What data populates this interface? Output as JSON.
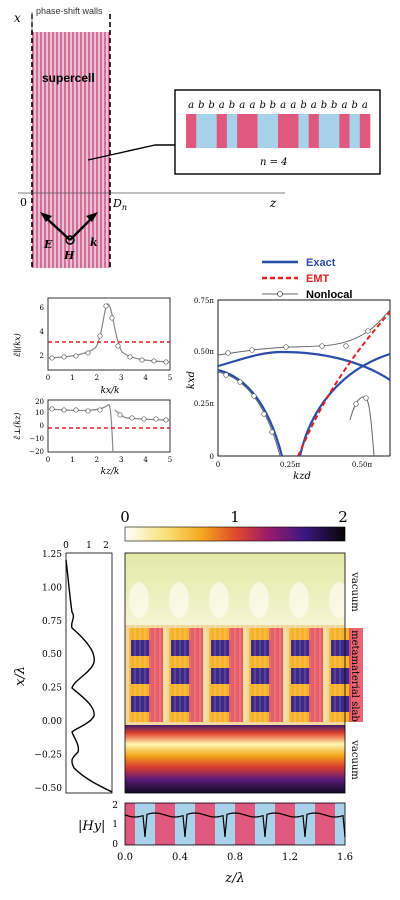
{
  "panel_a": {
    "walls_label": "phase-shift walls",
    "x_axis_label": "x",
    "z_axis_label": "z",
    "supercell_label": "supercell",
    "origin_label": "0",
    "d_label": "D",
    "d_sub": "n",
    "e_label": "E",
    "h_label": "H",
    "k_label": "k",
    "inset_letters": [
      "a",
      "b",
      "b",
      "a",
      "b",
      "a",
      "a",
      "b",
      "b",
      "a",
      "a",
      "b",
      "a",
      "b",
      "b",
      "a",
      "b",
      "a"
    ],
    "inset_caption": "n = 4"
  },
  "panel_b": {
    "y1_label": "ε̂∥(kx)",
    "x1_label": "kx/k",
    "y1_ticks": [
      "2",
      "4",
      "6"
    ],
    "x_ticks": [
      "0",
      "1",
      "2",
      "3",
      "4",
      "5"
    ],
    "y2_label": "ε̂⊥(kz)",
    "x2_label": "kz/k",
    "y2_ticks": [
      "20",
      "10",
      "0",
      "−10",
      "−20"
    ]
  },
  "panel_c": {
    "legend": [
      "Exact",
      "EMT",
      "Nonlocal"
    ],
    "y_label": "kxd",
    "x_label": "kzd",
    "y_ticks": [
      "0",
      "0.25π",
      "0.50π",
      "0.75π"
    ],
    "x_ticks": [
      "0",
      "0.25π",
      "0.50π"
    ]
  },
  "panel_d": {
    "colorbar_ticks": [
      "0",
      "1",
      "2"
    ],
    "side_ticks": [
      "0",
      "1",
      "2"
    ],
    "y_ticks": [
      "1.25",
      "1.00",
      "0.75",
      "0.50",
      "0.25",
      "0.00",
      "−0.25",
      "−0.50"
    ],
    "y_label": "x/λ",
    "region_labels": [
      "vacuum",
      "metamaterial slab",
      "vacuum"
    ],
    "hy_label": "|Hy|",
    "hy_ticks": [
      "2",
      "1",
      "0"
    ],
    "x_ticks": [
      "0.0",
      "0.4",
      "0.8",
      "1.2",
      "1.6"
    ],
    "x_label": "z/λ"
  }
}
